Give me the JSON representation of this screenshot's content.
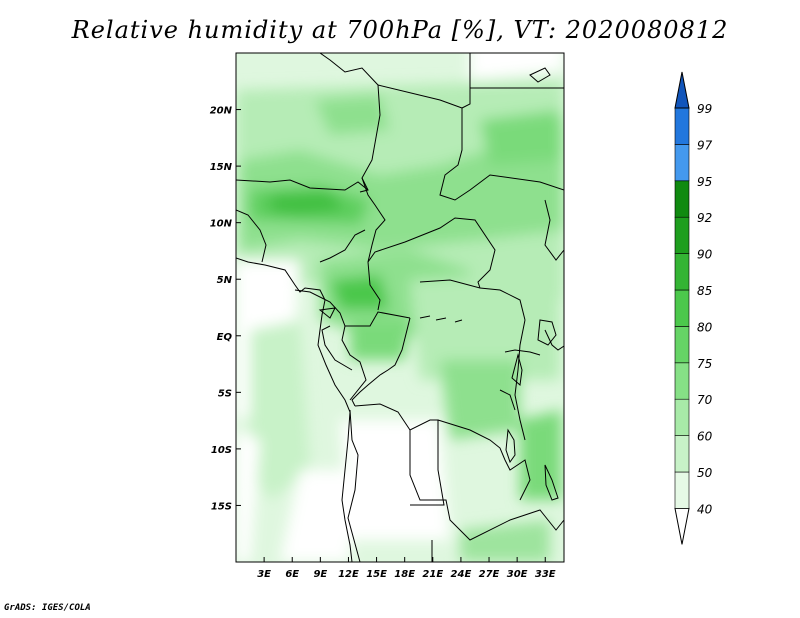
{
  "title": "Relative humidity at 700hPa [%], VT: 2020080812",
  "credit": "GrADS: IGES/COLA",
  "map": {
    "lon_range": [
      0,
      35
    ],
    "lat_range": [
      -20,
      25
    ],
    "lon_ticks": [
      "3E",
      "6E",
      "9E",
      "12E",
      "15E",
      "18E",
      "21E",
      "24E",
      "27E",
      "30E",
      "33E"
    ],
    "lon_tick_values": [
      3,
      6,
      9,
      12,
      15,
      18,
      21,
      24,
      27,
      30,
      33
    ],
    "lat_ticks": [
      "20N",
      "15N",
      "10N",
      "5N",
      "EQ",
      "5S",
      "10S",
      "15S"
    ],
    "lat_tick_values": [
      20,
      15,
      10,
      5,
      0,
      -5,
      -10,
      -15
    ]
  },
  "colorbar": {
    "labels": [
      "40",
      "50",
      "60",
      "70",
      "75",
      "80",
      "85",
      "90",
      "92",
      "95",
      "97",
      "99"
    ],
    "colors": [
      "#ffffff",
      "#e6f9e6",
      "#c8f2c8",
      "#a8eaa8",
      "#86e086",
      "#66d466",
      "#4cc84c",
      "#34b434",
      "#1e9e1e",
      "#108a10",
      "#4499ee",
      "#2277dd",
      "#1155bb"
    ]
  }
}
